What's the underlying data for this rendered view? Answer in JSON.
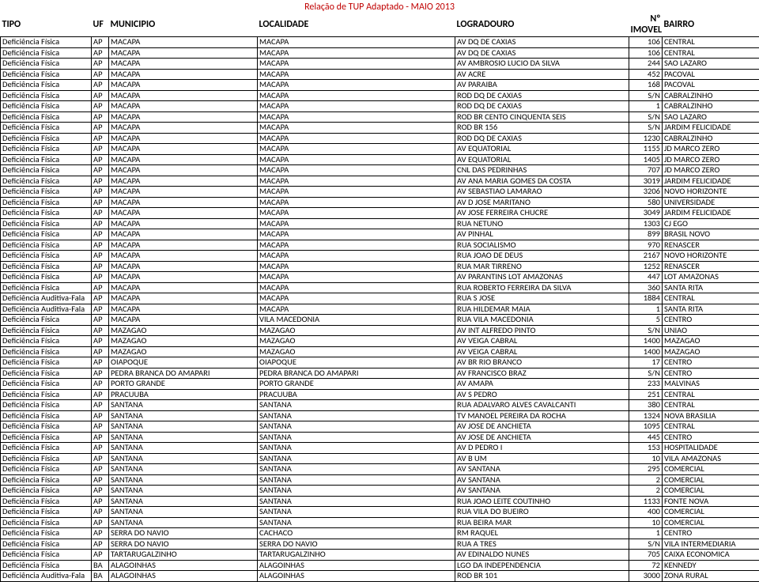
{
  "title": "Relação de TUP Adaptado - MAIO 2013",
  "columns": [
    "TIPO",
    "UF",
    "MUNICIPIO",
    "LOCALIDADE",
    "LOGRADOURO",
    "Nº IMOVEL",
    "BAIRRO"
  ],
  "rows": [
    [
      "Deficiência Física",
      "AP",
      "MACAPA",
      "MACAPA",
      "AV DQ DE CAXIAS",
      "106",
      "CENTRAL"
    ],
    [
      "Deficiência Física",
      "AP",
      "MACAPA",
      "MACAPA",
      "AV DQ DE CAXIAS",
      "106",
      "CENTRAL"
    ],
    [
      "Deficiência Física",
      "AP",
      "MACAPA",
      "MACAPA",
      "AV AMBROSIO LUCIO DA SILVA",
      "244",
      "SAO LAZARO"
    ],
    [
      "Deficiência Física",
      "AP",
      "MACAPA",
      "MACAPA",
      "AV ACRE",
      "452",
      "PACOVAL"
    ],
    [
      "Deficiência Física",
      "AP",
      "MACAPA",
      "MACAPA",
      "AV PARAIBA",
      "168",
      "PACOVAL"
    ],
    [
      "Deficiência Física",
      "AP",
      "MACAPA",
      "MACAPA",
      "ROD DQ DE CAXIAS",
      "S/N",
      "CABRALZINHO"
    ],
    [
      "Deficiência Física",
      "AP",
      "MACAPA",
      "MACAPA",
      "ROD DQ DE CAXIAS",
      "1",
      "CABRALZINHO"
    ],
    [
      "Deficiência Física",
      "AP",
      "MACAPA",
      "MACAPA",
      "ROD BR CENTO CINQUENTA SEIS",
      "S/N",
      "SAO LAZARO"
    ],
    [
      "Deficiência Física",
      "AP",
      "MACAPA",
      "MACAPA",
      "ROD BR 156",
      "S/N",
      "JARDIM FELICIDADE"
    ],
    [
      "Deficiência Física",
      "AP",
      "MACAPA",
      "MACAPA",
      "ROD DQ DE CAXIAS",
      "1230",
      "CABRALZINHO"
    ],
    [
      "Deficiência Física",
      "AP",
      "MACAPA",
      "MACAPA",
      "AV EQUATORIAL",
      "1155",
      "JD MARCO ZERO"
    ],
    [
      "Deficiência Física",
      "AP",
      "MACAPA",
      "MACAPA",
      "AV EQUATORIAL",
      "1405",
      "JD MARCO ZERO"
    ],
    [
      "Deficiência Física",
      "AP",
      "MACAPA",
      "MACAPA",
      "CNL DAS PEDRINHAS",
      "707",
      "JD MARCO ZERO"
    ],
    [
      "Deficiência Física",
      "AP",
      "MACAPA",
      "MACAPA",
      "AV ANA MARIA GOMES DA COSTA",
      "3019",
      "JARDIM FELICIDADE"
    ],
    [
      "Deficiência Física",
      "AP",
      "MACAPA",
      "MACAPA",
      "AV SEBASTIAO LAMARAO",
      "3206",
      "NOVO HORIZONTE"
    ],
    [
      "Deficiência Física",
      "AP",
      "MACAPA",
      "MACAPA",
      "AV D JOSE MARITANO",
      "580",
      "UNIVERSIDADE"
    ],
    [
      "Deficiência Física",
      "AP",
      "MACAPA",
      "MACAPA",
      "AV JOSE FERREIRA CHUCRE",
      "3049",
      "JARDIM FELICIDADE"
    ],
    [
      "Deficiência Física",
      "AP",
      "MACAPA",
      "MACAPA",
      "RUA NETUNO",
      "1303",
      "CJ EGO"
    ],
    [
      "Deficiência Física",
      "AP",
      "MACAPA",
      "MACAPA",
      "AV PINHAL",
      "899",
      "BRASIL NOVO"
    ],
    [
      "Deficiência Física",
      "AP",
      "MACAPA",
      "MACAPA",
      "RUA SOCIALISMO",
      "970",
      "RENASCER"
    ],
    [
      "Deficiência Física",
      "AP",
      "MACAPA",
      "MACAPA",
      "RUA JOAO DE DEUS",
      "2167",
      "NOVO HORIZONTE"
    ],
    [
      "Deficiência Física",
      "AP",
      "MACAPA",
      "MACAPA",
      "RUA MAR TIRRENO",
      "1252",
      "RENASCER"
    ],
    [
      "Deficiência Física",
      "AP",
      "MACAPA",
      "MACAPA",
      "AV PARANTINS LOT AMAZONAS",
      "447",
      "LOT AMAZONAS"
    ],
    [
      "Deficiência Física",
      "AP",
      "MACAPA",
      "MACAPA",
      "RUA ROBERTO FERREIRA DA SILVA",
      "360",
      "SANTA RITA"
    ],
    [
      "Deficiência Auditiva-Fala",
      "AP",
      "MACAPA",
      "MACAPA",
      "RUA S JOSE",
      "1884",
      "CENTRAL"
    ],
    [
      "Deficiência Auditiva-Fala",
      "AP",
      "MACAPA",
      "MACAPA",
      "RUA HILDEMAR MAIA",
      "1",
      "SANTA RITA"
    ],
    [
      "Deficiência Física",
      "AP",
      "MACAPA",
      "VILA MACEDONIA",
      "RUA VILA MACEDONIA",
      "5",
      "CENTRO"
    ],
    [
      "Deficiência Física",
      "AP",
      "MAZAGAO",
      "MAZAGAO",
      "AV INT ALFREDO PINTO",
      "S/N",
      "UNIAO"
    ],
    [
      "Deficiência Física",
      "AP",
      "MAZAGAO",
      "MAZAGAO",
      "AV VEIGA CABRAL",
      "1400",
      "MAZAGAO"
    ],
    [
      "Deficiência Física",
      "AP",
      "MAZAGAO",
      "MAZAGAO",
      "AV VEIGA CABRAL",
      "1400",
      "MAZAGAO"
    ],
    [
      "Deficiência Física",
      "AP",
      "OIAPOQUE",
      "OIAPOQUE",
      "AV BR RIO BRANCO",
      "17",
      "CENTRO"
    ],
    [
      "Deficiência Física",
      "AP",
      "PEDRA BRANCA DO AMAPARI",
      "PEDRA BRANCA DO AMAPARI",
      "AV FRANCISCO BRAZ",
      "S/N",
      "CENTRO"
    ],
    [
      "Deficiência Física",
      "AP",
      "PORTO GRANDE",
      "PORTO GRANDE",
      "AV AMAPA",
      "233",
      "MALVINAS"
    ],
    [
      "Deficiência Física",
      "AP",
      "PRACUUBA",
      "PRACUUBA",
      "AV S PEDRO",
      "251",
      "CENTRAL"
    ],
    [
      "Deficiência Física",
      "AP",
      "SANTANA",
      "SANTANA",
      "RUA ADALVARO ALVES CAVALCANTI",
      "380",
      "CENTRAL"
    ],
    [
      "Deficiência Física",
      "AP",
      "SANTANA",
      "SANTANA",
      "TV MANOEL PEREIRA DA ROCHA",
      "1324",
      "NOVA BRASILIA"
    ],
    [
      "Deficiência Física",
      "AP",
      "SANTANA",
      "SANTANA",
      "AV JOSE DE ANCHIETA",
      "1095",
      "CENTRAL"
    ],
    [
      "Deficiência Física",
      "AP",
      "SANTANA",
      "SANTANA",
      "AV JOSE DE ANCHIETA",
      "445",
      "CENTRO"
    ],
    [
      "Deficiência Física",
      "AP",
      "SANTANA",
      "SANTANA",
      "AV D PEDRO I",
      "153",
      "HOSPITALIDADE"
    ],
    [
      "Deficiência Física",
      "AP",
      "SANTANA",
      "SANTANA",
      "AV B UM",
      "10",
      "VILA AMAZONAS"
    ],
    [
      "Deficiência Física",
      "AP",
      "SANTANA",
      "SANTANA",
      "AV SANTANA",
      "295",
      "COMERCIAL"
    ],
    [
      "Deficiência Física",
      "AP",
      "SANTANA",
      "SANTANA",
      "AV SANTANA",
      "2",
      "COMERCIAL"
    ],
    [
      "Deficiência Física",
      "AP",
      "SANTANA",
      "SANTANA",
      "AV SANTANA",
      "2",
      "COMERCIAL"
    ],
    [
      "Deficiência Física",
      "AP",
      "SANTANA",
      "SANTANA",
      "RUA JOAO LEITE COUTINHO",
      "1133",
      "FONTE NOVA"
    ],
    [
      "Deficiência Física",
      "AP",
      "SANTANA",
      "SANTANA",
      "RUA VILA DO BUEIRO",
      "400",
      "COMERCIAL"
    ],
    [
      "Deficiência Física",
      "AP",
      "SANTANA",
      "SANTANA",
      "RUA BEIRA MAR",
      "10",
      "COMERCIAL"
    ],
    [
      "Deficiência Física",
      "AP",
      "SERRA DO NAVIO",
      "CACHACO",
      "RM RAQUEL",
      "1",
      "CENTRO"
    ],
    [
      "Deficiência Física",
      "AP",
      "SERRA DO NAVIO",
      "SERRA DO NAVIO",
      "RUA A TRES",
      "S/N",
      "VILA INTERMEDIARIA"
    ],
    [
      "Deficiência Física",
      "AP",
      "TARTARUGALZINHO",
      "TARTARUGALZINHO",
      "AV EDINALDO NUNES",
      "705",
      "CAIXA ECONOMICA"
    ],
    [
      "Deficiência Física",
      "BA",
      "ALAGOINHAS",
      "ALAGOINHAS",
      "LGO DA INDEPENDENCIA",
      "72",
      "KENNEDY"
    ],
    [
      "Deficiência Auditiva-Fala",
      "BA",
      "ALAGOINHAS",
      "ALAGOINHAS",
      "ROD BR 101",
      "3000",
      "ZONA RURAL"
    ]
  ]
}
